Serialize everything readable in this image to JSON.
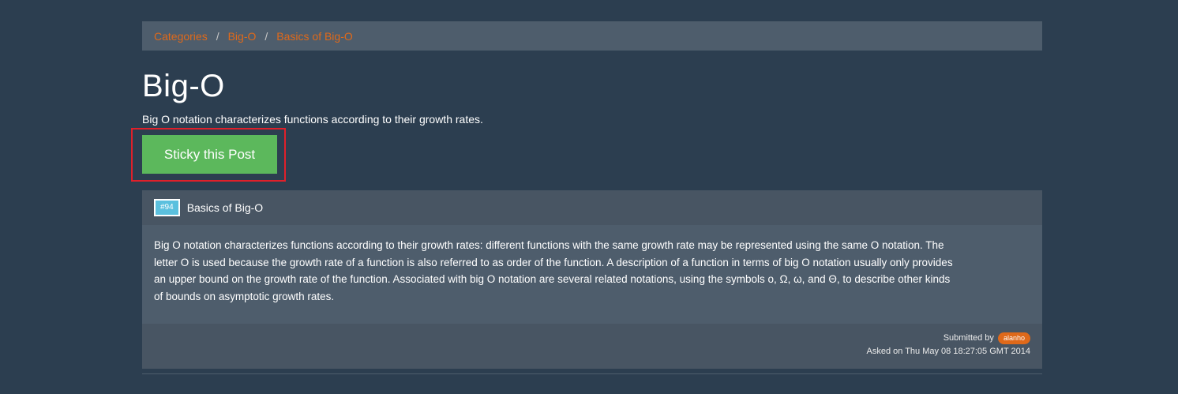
{
  "breadcrumb": {
    "items": [
      "Categories",
      "Big-O",
      "Basics of Big-O"
    ],
    "separator": "/"
  },
  "page": {
    "title": "Big-O",
    "subtitle": "Big O notation characterizes functions according to their growth rates."
  },
  "actions": {
    "sticky_label": "Sticky this Post"
  },
  "post": {
    "badge": "#94",
    "title": "Basics of Big-O",
    "body": "Big O notation characterizes functions according to their growth rates: different functions with the same growth rate may be represented using the same O notation. The letter O is used because the growth rate of a function is also referred to as order of the function. A description of a function in terms of big O notation usually only provides an upper bound on the growth rate of the function. Associated with big O notation are several related notations, using the symbols o, Ω, ω, and Θ, to describe other kinds of bounds on asymptotic growth rates.",
    "submitted_by_label": "Submitted by",
    "author": "alanho",
    "asked_on": "Asked on Thu May 08 18:27:05 GMT 2014"
  },
  "colors": {
    "background": "#2c3e50",
    "panel": "#4e5d6c",
    "accent_link": "#df691a",
    "success_button": "#5cb85c",
    "info_badge": "#5bc0de",
    "highlight_border": "#e0202a"
  }
}
